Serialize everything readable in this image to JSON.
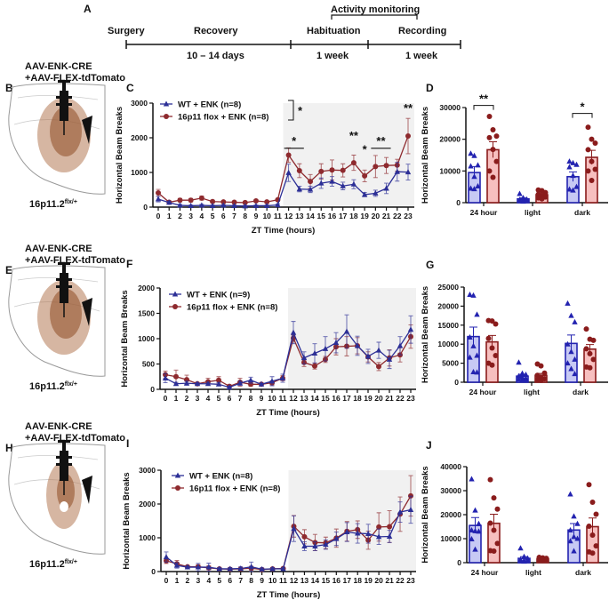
{
  "timeline": {
    "panel": "A",
    "stages": [
      "Surgery",
      "Recovery",
      "Habituation",
      "Recording"
    ],
    "durations": [
      "10 – 14 days",
      "1 week",
      "1 week"
    ],
    "bracket_label": "Activity monitoring"
  },
  "brains": [
    {
      "panel": "B",
      "injection": [
        "AAV-ENK-CRE",
        "+AAV-FLEX-tdTomato"
      ],
      "genotype": "16p11.2",
      "genotype_sup": "flx/+"
    },
    {
      "panel": "E",
      "injection": [
        "AAV-ENK-CRE",
        "+AAV-FLEX-tdTomato"
      ],
      "genotype": "16p11.2",
      "genotype_sup": "flx/+"
    },
    {
      "panel": "H",
      "injection": [
        "AAV-ENK-CRE",
        "+AAV-FLEX-tdTomato"
      ],
      "genotype": "16p11.2",
      "genotype_sup": "flx/+"
    }
  ],
  "colors": {
    "wt": "#2c2f96",
    "flox": "#8e2a2e",
    "wt_bar": "#c7c9f4",
    "flox_bar": "#f7bfbf",
    "wt_bar_edge": "#2323b0",
    "flox_bar_edge": "#8a1c1c",
    "shade": "#f1f1f1"
  },
  "chart_data": [
    {
      "panel": "C",
      "type": "line",
      "xlabel": "ZT Time (hours)",
      "ylabel": "Horizontal Beam Breaks",
      "x": [
        0,
        1,
        2,
        3,
        4,
        5,
        6,
        7,
        8,
        9,
        10,
        11,
        12,
        13,
        14,
        15,
        16,
        17,
        18,
        19,
        20,
        21,
        22,
        23
      ],
      "ylim": [
        0,
        3000
      ],
      "yticks": [
        0,
        1000,
        2000,
        3000
      ],
      "dark_phase_start": 11.5,
      "series": [
        {
          "name": "WT + ENK (n=8)",
          "marker": "triangle",
          "values": [
            230,
            130,
            50,
            40,
            50,
            40,
            50,
            40,
            30,
            40,
            40,
            60,
            990,
            520,
            510,
            690,
            740,
            610,
            660,
            360,
            400,
            540,
            1020,
            1010
          ],
          "sem": [
            80,
            40,
            30,
            20,
            30,
            20,
            20,
            20,
            20,
            20,
            20,
            30,
            250,
            80,
            90,
            150,
            140,
            110,
            130,
            60,
            90,
            150,
            270,
            230
          ]
        },
        {
          "name": "16p11 flox + ENK  (n=8)",
          "marker": "circle",
          "values": [
            410,
            140,
            200,
            200,
            260,
            160,
            150,
            140,
            130,
            180,
            150,
            210,
            1500,
            1050,
            740,
            1030,
            1070,
            1060,
            1280,
            900,
            1170,
            1200,
            1210,
            2050
          ],
          "sem": [
            100,
            40,
            50,
            50,
            60,
            30,
            30,
            30,
            30,
            40,
            30,
            40,
            210,
            200,
            200,
            220,
            290,
            190,
            220,
            170,
            320,
            230,
            170,
            510
          ]
        }
      ],
      "legend_bracket_sig": "*",
      "annotations": [
        {
          "text": "*",
          "x_from": 12,
          "x_to": 13,
          "y": 1800,
          "line": true
        },
        {
          "text": "**",
          "x_from": 18,
          "x_to": 18,
          "y": 1950,
          "line": false
        },
        {
          "text": "*",
          "x_from": 19,
          "x_to": 19,
          "y": 1550,
          "line": false
        },
        {
          "text": "**",
          "x_from": 20,
          "x_to": 21,
          "y": 1800,
          "line": true
        },
        {
          "text": "**",
          "x_from": 23,
          "x_to": 23,
          "y": 2750,
          "line": false
        }
      ]
    },
    {
      "panel": "D",
      "type": "bar",
      "ylabel": "Horizontal Beam Breaks",
      "categories": [
        "24 hour",
        "light",
        "dark"
      ],
      "ylim": [
        0,
        30000
      ],
      "yticks": [
        0,
        10000,
        20000,
        30000
      ],
      "series": [
        {
          "name": "WT + ENK",
          "values": [
            9500,
            1200,
            8200
          ],
          "sem": [
            1900,
            300,
            1500
          ],
          "points": [
            [
              15500,
              14800,
              11800,
              11500,
              8200,
              5200,
              4500,
              4300
            ],
            [
              2800,
              1500,
              1000,
              900,
              800,
              600,
              500,
              400
            ],
            [
              13000,
              12500,
              12000,
              11200,
              8500,
              5000,
              4200,
              3900
            ]
          ]
        },
        {
          "name": "16p11 flox + ENK",
          "values": [
            16700,
            2500,
            14300
          ],
          "sem": [
            2500,
            400,
            2200
          ],
          "points": [
            [
              27200,
              23000,
              21000,
              20500,
              16800,
              13000,
              10000,
              8000
            ],
            [
              4000,
              3800,
              3200,
              2600,
              2200,
              1800,
              1500,
              1200
            ],
            [
              23800,
              20000,
              18800,
              16700,
              13000,
              10500,
              10000,
              7000
            ]
          ]
        }
      ],
      "annotations": [
        {
          "text": "**",
          "category": "24 hour",
          "y": 31500
        },
        {
          "text": "*",
          "category": "dark",
          "y": 29000
        }
      ]
    },
    {
      "panel": "F",
      "type": "line",
      "xlabel": "ZT Time (hours)",
      "ylabel": "Horizontal Beam Breaks",
      "x": [
        0,
        1,
        2,
        3,
        4,
        5,
        6,
        7,
        8,
        9,
        10,
        11,
        12,
        13,
        14,
        15,
        16,
        17,
        18,
        19,
        20,
        21,
        22,
        23
      ],
      "ylim": [
        0,
        2000
      ],
      "yticks": [
        0,
        500,
        1000,
        1500,
        2000
      ],
      "dark_phase_start": 11.5,
      "series": [
        {
          "name": "WT + ENK (n=9)",
          "marker": "triangle",
          "values": [
            220,
            110,
            120,
            110,
            110,
            100,
            40,
            120,
            180,
            100,
            160,
            220,
            1120,
            620,
            710,
            800,
            920,
            1140,
            860,
            650,
            770,
            590,
            860,
            1180
          ],
          "sem": [
            90,
            30,
            40,
            20,
            30,
            30,
            20,
            40,
            60,
            20,
            90,
            80,
            220,
            120,
            190,
            240,
            200,
            330,
            190,
            140,
            160,
            180,
            180,
            270
          ]
        },
        {
          "name": "16p11 flox + ENK (n=8)",
          "marker": "circle",
          "values": [
            290,
            250,
            190,
            110,
            150,
            180,
            60,
            140,
            100,
            100,
            130,
            220,
            1010,
            530,
            460,
            590,
            840,
            850,
            860,
            640,
            450,
            620,
            680,
            1040
          ],
          "sem": [
            70,
            130,
            90,
            20,
            70,
            70,
            30,
            80,
            40,
            20,
            40,
            50,
            60,
            80,
            60,
            60,
            160,
            190,
            160,
            100,
            80,
            160,
            140,
            230
          ]
        }
      ],
      "annotations": []
    },
    {
      "panel": "G",
      "type": "bar",
      "ylabel": "Horizontal Beam Breaks",
      "categories": [
        "24 hour",
        "light",
        "dark"
      ],
      "ylim": [
        0,
        25000
      ],
      "yticks": [
        0,
        5000,
        10000,
        15000,
        20000,
        25000
      ],
      "series": [
        {
          "name": "WT + ENK",
          "values": [
            12000,
            1600,
            10200
          ],
          "sem": [
            2500,
            500,
            2200
          ],
          "points": [
            [
              23000,
              22800,
              17800,
              11800,
              9500,
              7000,
              6500,
              2700,
              2600
            ],
            [
              5200,
              2300,
              2000,
              1600,
              1300,
              1000,
              800,
              600,
              500
            ],
            [
              20700,
              17500,
              15800,
              10000,
              8000,
              6000,
              5000,
              3500,
              2200
            ]
          ]
        },
        {
          "name": "16p11 flox + ENK",
          "values": [
            10600,
            1800,
            8700
          ],
          "sem": [
            1700,
            500,
            1200
          ],
          "points": [
            [
              16200,
              16100,
              15300,
              11500,
              9000,
              7000,
              5000,
              4500
            ],
            [
              4800,
              4300,
              2400,
              1800,
              1200,
              900,
              600,
              500
            ],
            [
              14000,
              11300,
              11000,
              8800,
              7500,
              6000,
              4000,
              3800
            ]
          ]
        }
      ],
      "annotations": []
    },
    {
      "panel": "I",
      "type": "line",
      "xlabel": "ZT Time (hours)",
      "ylabel": "Horizontal Beam Breaks",
      "x": [
        0,
        1,
        2,
        3,
        4,
        5,
        6,
        7,
        8,
        9,
        10,
        11,
        12,
        13,
        14,
        15,
        16,
        17,
        18,
        19,
        20,
        21,
        22,
        23
      ],
      "ylim": [
        0,
        3000
      ],
      "yticks": [
        0,
        1000,
        2000,
        3000
      ],
      "dark_phase_start": 11.5,
      "series": [
        {
          "name": "WT + ENK (n=8)",
          "marker": "triangle",
          "values": [
            430,
            180,
            130,
            130,
            130,
            80,
            80,
            90,
            140,
            70,
            80,
            80,
            1270,
            750,
            750,
            800,
            970,
            1170,
            1130,
            1120,
            1030,
            1040,
            1760,
            1830
          ],
          "sem": [
            150,
            80,
            30,
            110,
            120,
            40,
            40,
            50,
            140,
            40,
            40,
            40,
            380,
            130,
            130,
            140,
            200,
            280,
            290,
            280,
            230,
            180,
            300,
            400
          ]
        },
        {
          "name": "16p11 flox + ENK  (n=8)",
          "marker": "circle",
          "values": [
            320,
            230,
            140,
            140,
            110,
            80,
            70,
            80,
            100,
            60,
            80,
            90,
            1340,
            1030,
            860,
            850,
            990,
            1190,
            1240,
            930,
            1320,
            1330,
            1700,
            2240
          ],
          "sem": [
            80,
            100,
            30,
            60,
            60,
            30,
            30,
            30,
            60,
            30,
            30,
            30,
            320,
            210,
            240,
            170,
            270,
            290,
            260,
            270,
            420,
            470,
            510,
            600
          ]
        }
      ],
      "annotations": []
    },
    {
      "panel": "J",
      "type": "bar",
      "ylabel": "Horizontal Beam Breaks",
      "categories": [
        "24 hour",
        "light",
        "dark"
      ],
      "ylim": [
        0,
        40000
      ],
      "yticks": [
        0,
        10000,
        20000,
        30000,
        40000
      ],
      "series": [
        {
          "name": "WT + ENK",
          "values": [
            15500,
            1800,
            13600
          ],
          "sem": [
            3300,
            700,
            2700
          ],
          "points": [
            [
              34800,
              21800,
              16200,
              13500,
              13200,
              13000,
              9800,
              5500
            ],
            [
              6000,
              2500,
              1800,
              1200,
              900,
              700,
              600,
              500
            ],
            [
              28500,
              19300,
              16200,
              13500,
              10800,
              10000,
              9000,
              4800
            ]
          ]
        },
        {
          "name": "16p11 flox + ENK",
          "values": [
            16400,
            1500,
            15000
          ],
          "sem": [
            3800,
            300,
            3600
          ],
          "points": [
            [
              34600,
              27000,
              22300,
              16500,
              13500,
              8000,
              5000,
              4800
            ],
            [
              2200,
              2000,
              1800,
              1600,
              1400,
              1200,
              1000,
              900
            ],
            [
              32500,
              25200,
              20200,
              15200,
              11500,
              7000,
              4500,
              4000
            ]
          ]
        }
      ],
      "annotations": []
    }
  ]
}
